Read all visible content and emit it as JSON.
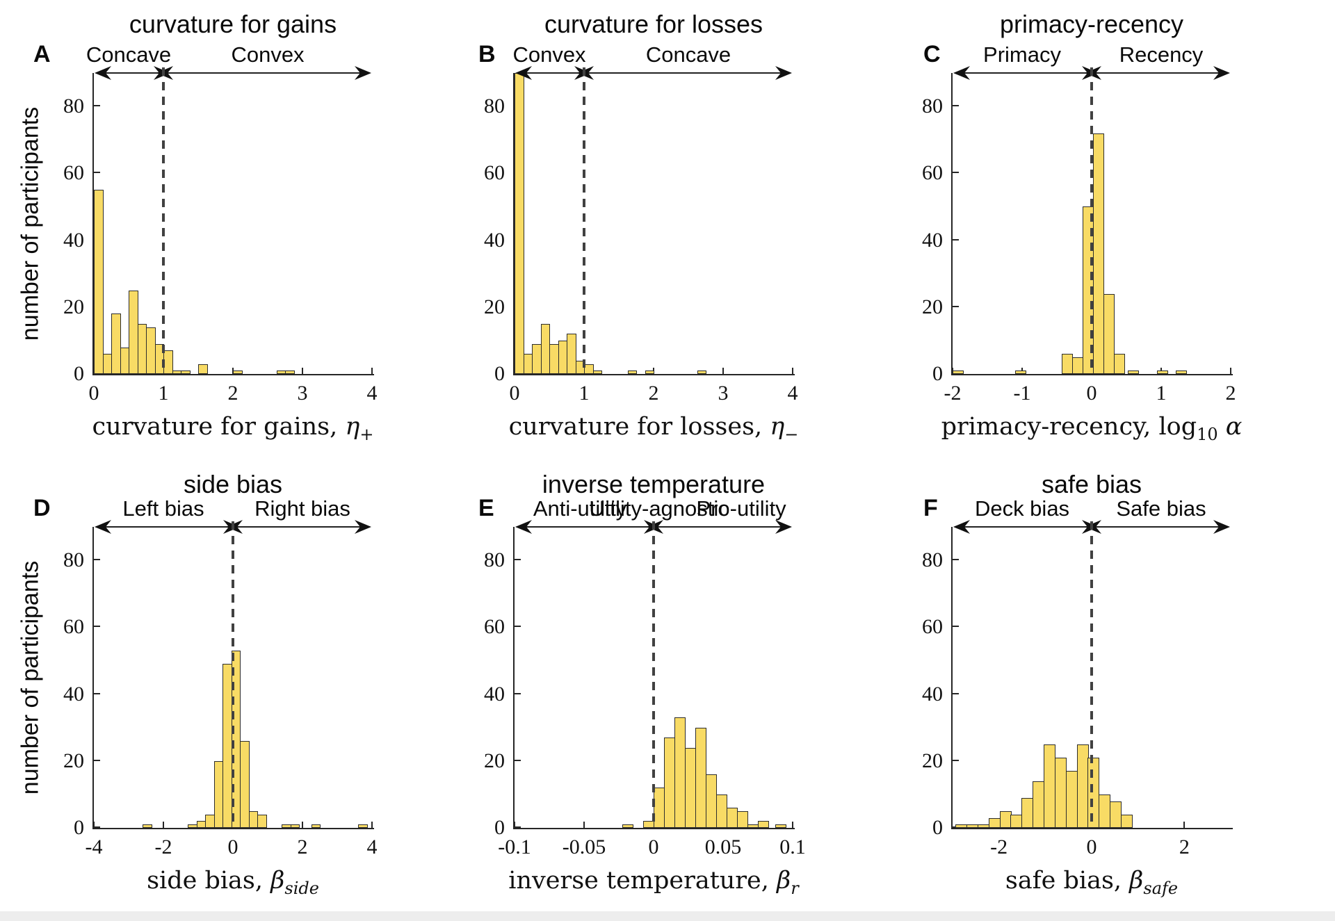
{
  "colors": {
    "background": "#FFFFFF",
    "bar_fill": "#F8DB65",
    "bar_edge": "#2D2D2D",
    "axis": "#262626",
    "dashed_line": "#414141",
    "text": "#000000",
    "bottom_strip": "#EDEDED"
  },
  "y_axis": {
    "label": "number of participants",
    "tick_labels": [
      "0",
      "20",
      "40",
      "60",
      "80"
    ],
    "tick_values": [
      0,
      20,
      40,
      60,
      80
    ],
    "ymax": 90
  },
  "chart_data": [
    {
      "letter": "A",
      "title": "curvature for gains",
      "type": "bar",
      "ylabel": "number of participants",
      "xlim": [
        0,
        4
      ],
      "dashed_x": 1,
      "bin_width": 0.125,
      "xticks": {
        "values": [
          0,
          1,
          2,
          3,
          4
        ],
        "labels": [
          "0",
          "1",
          "2",
          "3",
          "4"
        ]
      },
      "regions": [
        {
          "label": "Concave",
          "from": 0,
          "to": 1
        },
        {
          "label": "Convex",
          "from": 1,
          "to": 4
        }
      ],
      "xlabel_parts": [
        {
          "t": "curvature for gains,  ",
          "s": "p"
        },
        {
          "t": "η",
          "s": "i"
        },
        {
          "t": "+",
          "s": "sub"
        }
      ],
      "bars": [
        [
          0,
          55
        ],
        [
          0.125,
          6
        ],
        [
          0.25,
          18
        ],
        [
          0.375,
          8
        ],
        [
          0.5,
          25
        ],
        [
          0.625,
          15
        ],
        [
          0.75,
          14
        ],
        [
          0.875,
          9
        ],
        [
          1,
          7
        ],
        [
          1.125,
          1
        ],
        [
          1.25,
          1
        ],
        [
          1.5,
          3
        ],
        [
          2,
          1
        ],
        [
          2.625,
          1
        ],
        [
          2.75,
          1
        ]
      ]
    },
    {
      "letter": "B",
      "title": "curvature for losses",
      "type": "bar",
      "ylabel": "",
      "xlim": [
        0,
        4
      ],
      "dashed_x": 1,
      "bin_width": 0.125,
      "xticks": {
        "values": [
          0,
          1,
          2,
          3,
          4
        ],
        "labels": [
          "0",
          "1",
          "2",
          "3",
          "4"
        ]
      },
      "regions": [
        {
          "label": "Convex",
          "from": 0,
          "to": 1
        },
        {
          "label": "Concave",
          "from": 1,
          "to": 4
        }
      ],
      "xlabel_parts": [
        {
          "t": "curvature for losses,  ",
          "s": "p"
        },
        {
          "t": "η",
          "s": "i"
        },
        {
          "t": "−",
          "s": "sub"
        }
      ],
      "bars": [
        [
          0,
          90
        ],
        [
          0.125,
          6
        ],
        [
          0.25,
          9
        ],
        [
          0.375,
          15
        ],
        [
          0.5,
          9
        ],
        [
          0.625,
          10
        ],
        [
          0.75,
          12
        ],
        [
          0.875,
          4
        ],
        [
          1,
          3
        ],
        [
          1.125,
          1
        ],
        [
          1.625,
          1
        ],
        [
          1.875,
          1
        ],
        [
          2.625,
          1
        ]
      ]
    },
    {
      "letter": "C",
      "title": "primacy-recency",
      "type": "bar",
      "ylabel": "",
      "xlim": [
        -2,
        2
      ],
      "dashed_x": 0,
      "bin_width": 0.15,
      "xticks": {
        "values": [
          -2,
          -1,
          0,
          1,
          2
        ],
        "labels": [
          "-2",
          "-1",
          "0",
          "1",
          "2"
        ]
      },
      "regions": [
        {
          "label": "Primacy",
          "from": -2,
          "to": 0
        },
        {
          "label": "Recency",
          "from": 0,
          "to": 2
        }
      ],
      "xlabel_parts": [
        {
          "t": "primacy-recency,  ",
          "s": "p"
        },
        {
          "t": "log",
          "s": "p"
        },
        {
          "t": "10",
          "s": "sub"
        },
        {
          "t": " α",
          "s": "i"
        }
      ],
      "bars": [
        [
          -2,
          1
        ],
        [
          -1.1,
          1
        ],
        [
          -0.43,
          6
        ],
        [
          -0.28,
          5
        ],
        [
          -0.13,
          50
        ],
        [
          0.02,
          72
        ],
        [
          0.17,
          24
        ],
        [
          0.32,
          6
        ],
        [
          0.52,
          1
        ],
        [
          0.94,
          1
        ],
        [
          1.21,
          1
        ]
      ]
    },
    {
      "letter": "D",
      "title": "side bias",
      "type": "bar",
      "ylabel": "number of participants",
      "xlim": [
        -4,
        4
      ],
      "dashed_x": 0,
      "bin_width": 0.25,
      "xticks": {
        "values": [
          -4,
          -2,
          0,
          2,
          4
        ],
        "labels": [
          "-4",
          "-2",
          "0",
          "2",
          "4"
        ]
      },
      "regions": [
        {
          "label": "Left bias",
          "from": -4,
          "to": 0
        },
        {
          "label": "Right bias",
          "from": 0,
          "to": 4
        }
      ],
      "xlabel_parts": [
        {
          "t": "side bias,  ",
          "s": "p"
        },
        {
          "t": "β",
          "s": "i"
        },
        {
          "t": "side",
          "s": "subi"
        }
      ],
      "bars": [
        [
          -2.6,
          1
        ],
        [
          -1.3,
          1
        ],
        [
          -1.05,
          2
        ],
        [
          -0.8,
          4
        ],
        [
          -0.55,
          20
        ],
        [
          -0.3,
          49
        ],
        [
          -0.05,
          53
        ],
        [
          0.2,
          26
        ],
        [
          0.45,
          5
        ],
        [
          0.7,
          4
        ],
        [
          1.4,
          1
        ],
        [
          1.65,
          1
        ],
        [
          2.25,
          1
        ],
        [
          3.6,
          1
        ]
      ]
    },
    {
      "letter": "E",
      "title": "inverse temperature",
      "type": "bar",
      "ylabel": "",
      "xlim": [
        -0.1,
        0.1
      ],
      "dashed_x": 0,
      "bin_width": 0.0075,
      "xticks": {
        "values": [
          -0.1,
          -0.05,
          0,
          0.05,
          0.1
        ],
        "labels": [
          "-0.1",
          "-0.05",
          "0",
          "0.05",
          "0.1"
        ]
      },
      "regions": [
        {
          "label": "Anti-utility",
          "from": -0.1,
          "to": 0,
          "label_at": -0.053
        },
        {
          "label": "Utility-agnostic",
          "at": 0.004
        },
        {
          "label": "Pro-utility",
          "from": 0,
          "to": 0.1,
          "label_at": 0.063
        }
      ],
      "xlabel_parts": [
        {
          "t": "inverse temperature,  ",
          "s": "p"
        },
        {
          "t": "β",
          "s": "i"
        },
        {
          "t": "r",
          "s": "subi"
        }
      ],
      "bars": [
        [
          -0.0225,
          1
        ],
        [
          -0.0075,
          2
        ],
        [
          0,
          12
        ],
        [
          0.0075,
          27
        ],
        [
          0.015,
          33
        ],
        [
          0.0225,
          24
        ],
        [
          0.03,
          30
        ],
        [
          0.0375,
          16
        ],
        [
          0.045,
          10
        ],
        [
          0.0525,
          6
        ],
        [
          0.06,
          5
        ],
        [
          0.0675,
          1
        ],
        [
          0.075,
          2
        ],
        [
          0.0875,
          1
        ]
      ]
    },
    {
      "letter": "F",
      "title": "safe bias",
      "type": "bar",
      "ylabel": "",
      "xlim": [
        -3,
        3
      ],
      "dashed_x": 0,
      "bin_width": 0.238,
      "xticks": {
        "values": [
          -2,
          0,
          2
        ],
        "labels": [
          "-2",
          "0",
          "2"
        ]
      },
      "regions": [
        {
          "label": "Deck bias",
          "from": -3,
          "to": 0
        },
        {
          "label": "Safe bias",
          "from": 0,
          "to": 3
        }
      ],
      "xlabel_parts": [
        {
          "t": "safe bias,  ",
          "s": "p"
        },
        {
          "t": "β",
          "s": "i"
        },
        {
          "t": "safe",
          "s": "subi"
        }
      ],
      "bars": [
        [
          -2.94,
          1
        ],
        [
          -2.702,
          1
        ],
        [
          -2.464,
          1
        ],
        [
          -2.226,
          3
        ],
        [
          -1.988,
          5
        ],
        [
          -1.75,
          4
        ],
        [
          -1.512,
          9
        ],
        [
          -1.274,
          14
        ],
        [
          -1.036,
          25
        ],
        [
          -0.798,
          21
        ],
        [
          -0.56,
          17
        ],
        [
          -0.322,
          25
        ],
        [
          -0.084,
          21
        ],
        [
          0.154,
          10
        ],
        [
          0.392,
          8
        ],
        [
          0.63,
          4
        ]
      ]
    }
  ]
}
